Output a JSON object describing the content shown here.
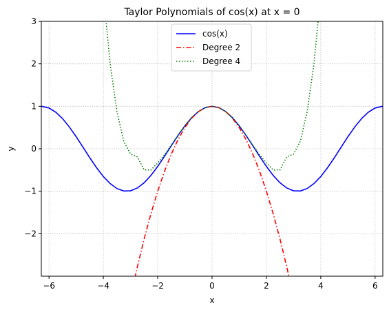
{
  "chart_data": {
    "type": "line",
    "title": "Taylor Polynomials of cos(x) at x = 0",
    "xlabel": "x",
    "ylabel": "y",
    "xlim": [
      -6.2832,
      6.2832
    ],
    "ylim": [
      -3,
      3
    ],
    "xticks": [
      -6,
      -4,
      -2,
      0,
      2,
      4,
      6
    ],
    "yticks": [
      -2,
      -1,
      0,
      1,
      2,
      3
    ],
    "ytick_labels": [
      "−2",
      "−1",
      "0",
      "1",
      "2",
      "3"
    ],
    "xtick_labels": [
      "−6",
      "−4",
      "−2",
      "0",
      "2",
      "4",
      "6"
    ],
    "grid": true,
    "legend_position": "top-center",
    "series": [
      {
        "name": "cos(x)",
        "color": "#0000ff",
        "style": "solid",
        "x": [
          -6.28,
          -6.0,
          -5.75,
          -5.5,
          -5.25,
          -5.0,
          -4.75,
          -4.5,
          -4.25,
          -4.0,
          -3.75,
          -3.5,
          -3.25,
          -3.0,
          -2.75,
          -2.5,
          -2.25,
          -2.0,
          -1.75,
          -1.5,
          -1.25,
          -1.0,
          -0.75,
          -0.5,
          -0.25,
          0.0,
          0.25,
          0.5,
          0.75,
          1.0,
          1.25,
          1.5,
          1.75,
          2.0,
          2.25,
          2.5,
          2.75,
          3.0,
          3.25,
          3.5,
          3.75,
          4.0,
          4.25,
          4.5,
          4.75,
          5.0,
          5.25,
          5.5,
          5.75,
          6.0,
          6.28
        ],
        "y": [
          1.0,
          0.96,
          0.861,
          0.709,
          0.512,
          0.284,
          0.038,
          -0.211,
          -0.446,
          -0.654,
          -0.82,
          -0.936,
          -0.994,
          -0.99,
          -0.924,
          -0.801,
          -0.628,
          -0.416,
          -0.178,
          0.071,
          0.315,
          0.54,
          0.732,
          0.878,
          0.969,
          1.0,
          0.969,
          0.878,
          0.732,
          0.54,
          0.315,
          0.071,
          -0.178,
          -0.416,
          -0.628,
          -0.801,
          -0.924,
          -0.99,
          -0.994,
          -0.936,
          -0.82,
          -0.654,
          -0.446,
          -0.211,
          0.038,
          0.284,
          0.512,
          0.709,
          0.861,
          0.96,
          1.0
        ]
      },
      {
        "name": "Degree 2",
        "color": "#ff0000",
        "style": "dashdot",
        "x": [
          -3.0,
          -2.75,
          -2.5,
          -2.25,
          -2.0,
          -1.75,
          -1.5,
          -1.25,
          -1.0,
          -0.75,
          -0.5,
          -0.25,
          0.0,
          0.25,
          0.5,
          0.75,
          1.0,
          1.25,
          1.5,
          1.75,
          2.0,
          2.25,
          2.5,
          2.75,
          3.0
        ],
        "y": [
          -3.5,
          -2.781,
          -2.125,
          -1.531,
          -1.0,
          -0.531,
          -0.125,
          0.219,
          0.5,
          0.719,
          0.875,
          0.969,
          1.0,
          0.969,
          0.875,
          0.719,
          0.5,
          0.219,
          -0.125,
          -0.531,
          -1.0,
          -1.531,
          -2.125,
          -2.781,
          -3.5
        ]
      },
      {
        "name": "Degree 4",
        "color": "#008000",
        "style": "dotted",
        "x": [
          -4.0,
          -3.75,
          -3.5,
          -3.25,
          -3.0,
          -2.75,
          -2.5,
          -2.25,
          -2.0,
          -1.75,
          -1.5,
          -1.25,
          -1.0,
          -0.75,
          -0.5,
          -0.25,
          0.0,
          0.25,
          0.5,
          0.75,
          1.0,
          1.25,
          1.5,
          1.75,
          2.0,
          2.25,
          2.5,
          2.75,
          3.0,
          3.25,
          3.5,
          3.75,
          4.0
        ],
        "y": [
          3.667,
          1.999,
          0.876,
          0.179,
          -0.125,
          -0.19,
          -0.497,
          -0.5,
          -0.333,
          -0.141,
          0.086,
          0.32,
          0.542,
          0.732,
          0.878,
          0.969,
          1.0,
          0.969,
          0.878,
          0.732,
          0.542,
          0.32,
          0.086,
          -0.141,
          -0.333,
          -0.5,
          -0.497,
          -0.19,
          -0.125,
          0.179,
          0.876,
          1.999,
          3.667
        ]
      }
    ]
  }
}
